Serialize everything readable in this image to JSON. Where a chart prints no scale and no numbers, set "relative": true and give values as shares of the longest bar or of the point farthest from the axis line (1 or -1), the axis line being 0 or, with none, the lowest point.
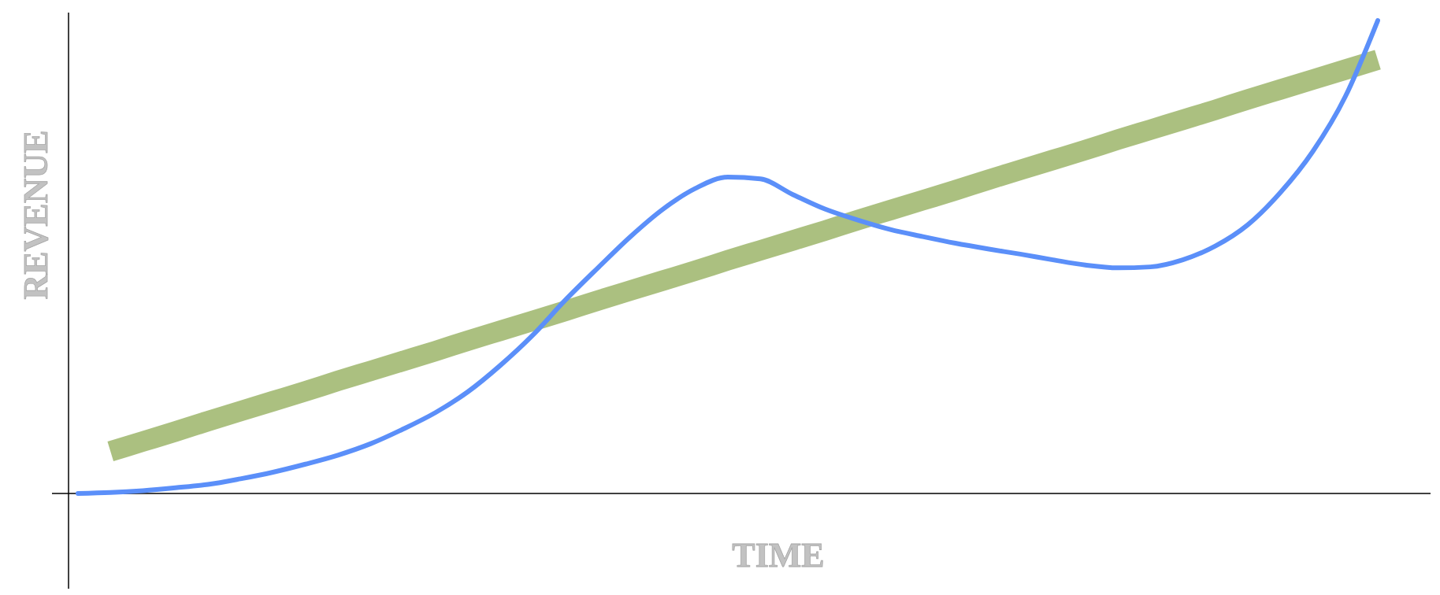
{
  "chart_data": {
    "type": "line",
    "relative": true,
    "xlabel": "TIME",
    "ylabel": "REVENUE",
    "categories": [
      null,
      null,
      null,
      null,
      null,
      null,
      null,
      null,
      null,
      null,
      null,
      null,
      null,
      null,
      null,
      null,
      null,
      null,
      null,
      null,
      null,
      null,
      null,
      null,
      null,
      null,
      null,
      null,
      null,
      null,
      null,
      null,
      null,
      null,
      null,
      null,
      null,
      null,
      null,
      null,
      null
    ],
    "series": [
      {
        "color": "#9cb56a",
        "values": [
          null,
          0.089,
          0.11,
          0.131,
          0.153,
          0.174,
          0.195,
          0.216,
          0.238,
          0.259,
          0.28,
          0.301,
          0.323,
          0.344,
          0.365,
          0.386,
          0.408,
          0.429,
          0.45,
          0.471,
          0.493,
          0.514,
          0.535,
          0.556,
          0.578,
          0.599,
          0.62,
          0.641,
          0.663,
          0.684,
          0.705,
          0.726,
          0.748,
          0.769,
          0.79,
          0.811,
          0.833,
          0.854,
          0.875,
          0.896,
          0.917
        ]
      },
      {
        "color": "#5b8ff9",
        "values": [
          0,
          0.002,
          0.006,
          0.012,
          0.019,
          0.031,
          0.045,
          0.062,
          0.081,
          0.105,
          0.136,
          0.171,
          0.215,
          0.271,
          0.335,
          0.409,
          0.477,
          0.543,
          0.601,
          0.645,
          0.669,
          0.665,
          0.632,
          0.601,
          0.578,
          0.558,
          0.543,
          0.529,
          0.517,
          0.506,
          0.494,
          0.483,
          0.477,
          0.479,
          0.494,
          0.523,
          0.568,
          0.636,
          0.723,
          0.839,
          1
        ]
      }
    ]
  }
}
